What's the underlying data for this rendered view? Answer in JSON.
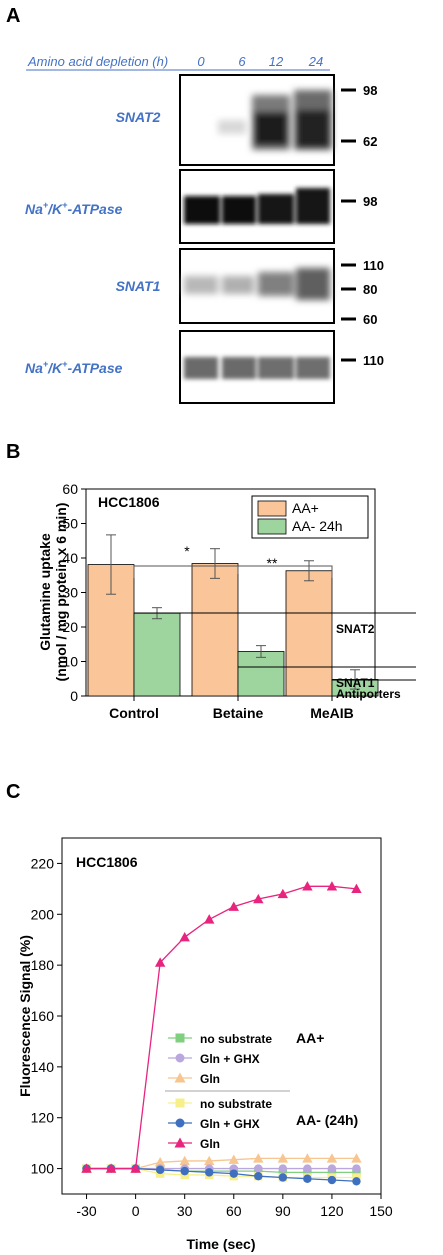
{
  "panelA": {
    "letter": "A",
    "header_label": "Amino acid depletion (h)",
    "timepoints": [
      "0",
      "6",
      "12",
      "24"
    ],
    "blots": [
      {
        "label_main": "SNAT2",
        "label_sup": "",
        "label_tail": "",
        "markers": [
          "98",
          "62"
        ]
      },
      {
        "label_main": "Na",
        "label_sup": "+",
        "label_tail": "/K",
        "label_sup2": "+",
        "label_end": "-ATPase",
        "markers": [
          "98"
        ]
      },
      {
        "label_main": "SNAT1",
        "label_sup": "",
        "label_tail": "",
        "markers": [
          "110",
          "80",
          "60"
        ]
      },
      {
        "label_main": "Na",
        "label_sup": "+",
        "label_tail": "/K",
        "label_sup2": "+",
        "label_end": "-ATPase",
        "markers": [
          "110"
        ]
      }
    ]
  },
  "panelB": {
    "letter": "B",
    "cell_line": "HCC1806",
    "ylabel_line1": "Glutamine uptake",
    "ylabel_line2": "(nmol / mg protein x 6 min)",
    "yticks": [
      "0",
      "10",
      "20",
      "30",
      "40",
      "50",
      "60"
    ],
    "significance": [
      "*",
      "**"
    ],
    "annotations": [
      "SNAT2",
      "SNAT1",
      "Antiporters"
    ],
    "colors": {
      "aa_plus": "#f9c599",
      "aa_minus": "#9ed49e"
    }
  },
  "panelC": {
    "letter": "C",
    "cell_line": "HCC1806",
    "ylabel": "Fluorescence Signal (%)",
    "xlabel": "Time (sec)",
    "yticks": [
      "100",
      "120",
      "140",
      "160",
      "180",
      "200",
      "220"
    ],
    "xticks": [
      "-30",
      "0",
      "30",
      "60",
      "90",
      "120",
      "150"
    ],
    "group_labels": [
      "AA+",
      "AA- (24h)"
    ],
    "legend": [
      "no substrate",
      "Gln + GHX",
      "Gln",
      "no substrate",
      "Gln + GHX",
      "Gln"
    ]
  },
  "chart_data": [
    {
      "type": "bar",
      "title": "HCC1806",
      "xlabel": "",
      "ylabel": "Glutamine uptake (nmol / mg protein x 6 min)",
      "categories": [
        "Control",
        "Betaine",
        "MeAIB"
      ],
      "ylim": [
        0,
        60
      ],
      "legend_position": "top-right",
      "series": [
        {
          "name": "AA+",
          "color": "#f9c599",
          "values": [
            38.1,
            38.4,
            36.3
          ],
          "errors": [
            8.6,
            4.3,
            2.9
          ]
        },
        {
          "name": "AA- 24h",
          "color": "#9ed49e",
          "values": [
            24.0,
            12.9,
            4.8
          ],
          "errors": [
            1.6,
            1.7,
            2.8
          ]
        }
      ]
    },
    {
      "type": "line",
      "title": "HCC1806",
      "xlabel": "Time (sec)",
      "ylabel": "Fluorescence Signal (%)",
      "xlim": [
        -45,
        150
      ],
      "ylim": [
        90,
        230
      ],
      "legend_position": "center-right",
      "x": [
        -30,
        -15,
        0,
        15,
        30,
        45,
        60,
        75,
        90,
        105,
        120,
        135
      ],
      "series": [
        {
          "name": "no substrate",
          "group": "AA+",
          "color": "#7fcf7f",
          "marker": "square",
          "values": [
            100,
            100,
            100,
            99.5,
            99,
            99,
            99,
            99,
            98.5,
            98.5,
            98.5,
            98.5
          ]
        },
        {
          "name": "Gln + GHX",
          "group": "AA+",
          "color": "#b9a7de",
          "marker": "circle",
          "values": [
            100,
            100,
            100,
            100,
            100,
            100,
            100,
            100,
            100,
            100,
            100,
            100
          ]
        },
        {
          "name": "Gln",
          "group": "AA+",
          "color": "#f7c58f",
          "marker": "triangle",
          "values": [
            100,
            100,
            100,
            102.5,
            103,
            103,
            103.5,
            104,
            104,
            104,
            104,
            104
          ]
        },
        {
          "name": "no substrate",
          "group": "AA- (24h)",
          "color": "#f7f08a",
          "marker": "square",
          "values": [
            100,
            100,
            100,
            98,
            97.5,
            97.5,
            97,
            97,
            96.5,
            96.5,
            96.5,
            96.5
          ]
        },
        {
          "name": "Gln + GHX",
          "group": "AA- (24h)",
          "color": "#3f6fbf",
          "marker": "circle",
          "values": [
            100,
            100,
            100,
            99.5,
            99,
            98.5,
            98,
            97,
            96.5,
            96,
            95.5,
            95
          ]
        },
        {
          "name": "Gln",
          "group": "AA- (24h)",
          "color": "#e8247f",
          "marker": "triangle",
          "values": [
            100,
            100,
            100,
            181,
            191,
            198,
            203,
            206,
            208,
            211,
            211,
            210
          ]
        }
      ]
    }
  ]
}
